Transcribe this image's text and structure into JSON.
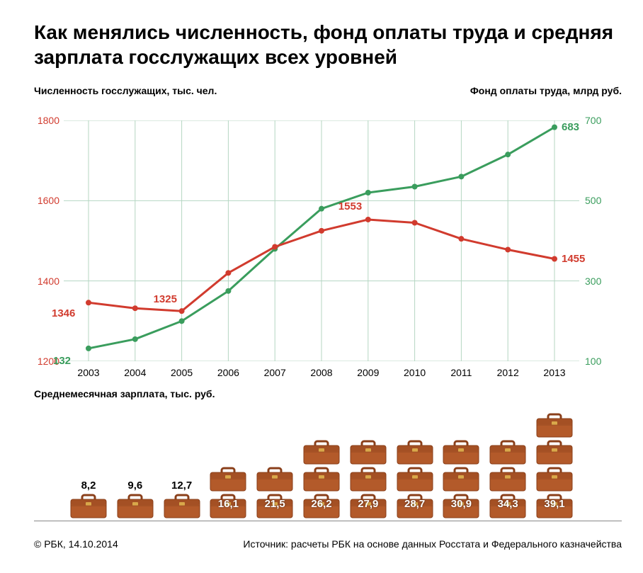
{
  "title": "Как менялись численность, фонд оплаты труда и средняя зарплата госслужащих всех уровней",
  "left_axis": {
    "label": "Численность госслужащих,\nтыс. чел.",
    "color": "#d13b2e",
    "min": 1200,
    "max": 1800,
    "ticks": [
      1200,
      1400,
      1600,
      1800
    ]
  },
  "right_axis": {
    "label": "Фонд оплаты труда,\nмлрд руб.",
    "color": "#3a9d5d",
    "min": 100,
    "max": 700,
    "ticks": [
      100,
      300,
      500,
      700
    ]
  },
  "years": [
    "2003",
    "2004",
    "2005",
    "2006",
    "2007",
    "2008",
    "2009",
    "2010",
    "2011",
    "2012",
    "2013"
  ],
  "series": {
    "headcount": {
      "color": "#d13b2e",
      "line_width": 3,
      "marker_radius": 4,
      "values": [
        1346,
        1332,
        1325,
        1420,
        1485,
        1525,
        1553,
        1545,
        1505,
        1478,
        1455
      ],
      "labels": {
        "2003": "1346",
        "2005": "1325",
        "2009": "1553",
        "2013": "1455"
      }
    },
    "payroll": {
      "color": "#3a9d5d",
      "line_width": 3,
      "marker_radius": 4,
      "values": [
        132,
        155,
        200,
        275,
        380,
        480,
        520,
        535,
        560,
        615,
        683
      ],
      "labels": {
        "2003": "132",
        "2013": "683"
      }
    }
  },
  "salary": {
    "label": "Среднемесячная\nзарплата,\nтыс. руб.",
    "unit_per_briefcase": 10,
    "briefcase_color": "#b35a2a",
    "briefcase_dark": "#8a3f1a",
    "briefcase_clasp": "#d9a84a",
    "values": [
      8.2,
      9.6,
      12.7,
      16.1,
      21.5,
      26.2,
      27.9,
      28.7,
      30.9,
      34.3,
      39.1
    ],
    "display": [
      "8,2",
      "9,6",
      "12,7",
      "16,1",
      "21,5",
      "26,2",
      "27,9",
      "28,7",
      "30,9",
      "34,3",
      "39,1"
    ]
  },
  "grid_color": "#b5d6c2",
  "background_color": "#ffffff",
  "footer_left": "© РБК, 14.10.2014",
  "footer_right": "Источник: расчеты РБК на основе данных Росстата и Федерального казначейства",
  "label_fontsize": 14,
  "title_fontsize": 28
}
